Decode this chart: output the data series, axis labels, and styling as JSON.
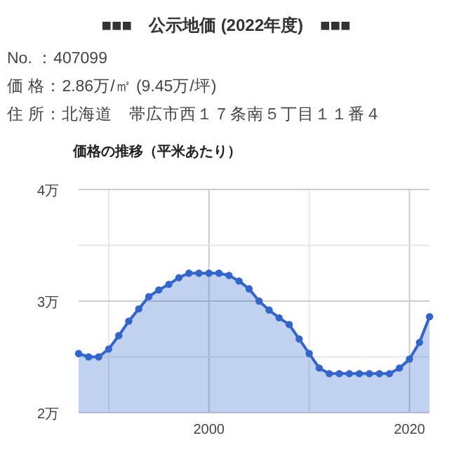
{
  "chart_data": {
    "type": "area",
    "title": "■■■　公示地価 (2022年度)　■■■",
    "subtitle": "価格の推移（平米あたり）",
    "annotations": [
      "No. ：407099",
      "価 格：2.86万/㎡ (9.45万/坪)",
      "住 所：北海道　帯広市西１７条南５丁目１１番４"
    ],
    "x": [
      1987,
      1988,
      1989,
      1990,
      1991,
      1992,
      1993,
      1994,
      1995,
      1996,
      1997,
      1998,
      1999,
      2000,
      2001,
      2002,
      2003,
      2004,
      2005,
      2006,
      2007,
      2008,
      2009,
      2010,
      2011,
      2012,
      2013,
      2014,
      2015,
      2016,
      2017,
      2018,
      2019,
      2020,
      2021,
      2022
    ],
    "series": [
      {
        "color": "#3366cc",
        "values": [
          2.53,
          2.5,
          2.5,
          2.57,
          2.69,
          2.82,
          2.93,
          3.04,
          3.1,
          3.15,
          3.21,
          3.25,
          3.25,
          3.25,
          3.25,
          3.23,
          3.18,
          3.11,
          3.0,
          2.92,
          2.85,
          2.79,
          2.66,
          2.53,
          2.4,
          2.35,
          2.35,
          2.35,
          2.35,
          2.35,
          2.35,
          2.35,
          2.4,
          2.48,
          2.63,
          2.86
        ]
      }
    ],
    "xlim": [
      1987,
      2022
    ],
    "xticks": [
      {
        "value": 1990,
        "label": null
      },
      2000,
      {
        "value": 2010,
        "label": null
      },
      2020
    ],
    "ylim": [
      2,
      4
    ],
    "yticks": [
      {
        "value": 2,
        "label": "2万"
      },
      {
        "value": 2.5,
        "label": null
      },
      {
        "value": 3,
        "label": "3万"
      },
      {
        "value": 3.5,
        "label": null
      },
      {
        "value": 4,
        "label": "4万"
      }
    ],
    "grid": true,
    "marker": "circle"
  }
}
